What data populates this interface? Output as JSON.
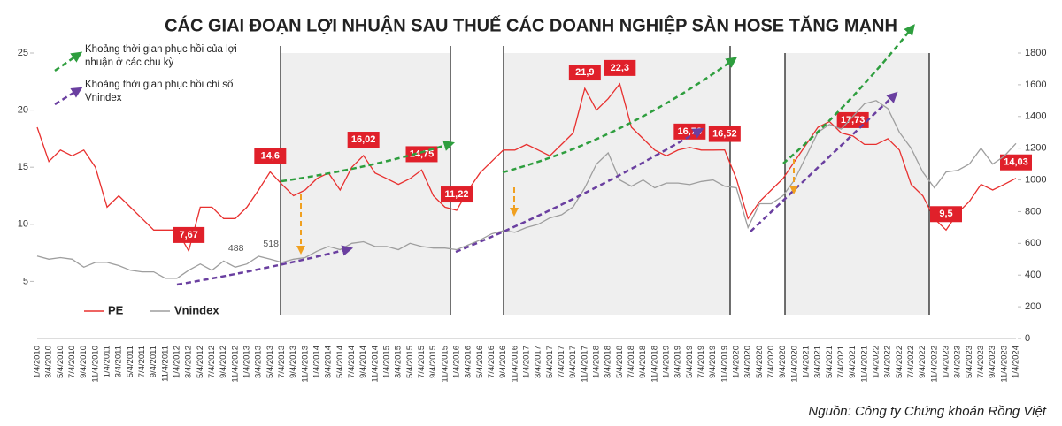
{
  "chart_data": {
    "type": "line",
    "title": "CÁC GIAI ĐOẠN LỢI NHUẬN SAU THUẾ CÁC DOANH NGHIỆP SÀN HOSE TĂNG MẠNH",
    "source": "Nguồn: Công ty Chứng khoán Rồng Việt",
    "annotations": [
      {
        "color": "#2e9e3e",
        "lines": [
          "Khoảng thời gian phục hồi của lợi",
          "nhuận ở các chu kỳ"
        ]
      },
      {
        "color": "#6a3fa0",
        "lines": [
          "Khoảng thời gian phục hồi chỉ số",
          "Vnindex"
        ]
      }
    ],
    "legend": "lower left",
    "categories": [
      "1/4/2010",
      "3/4/2010",
      "5/4/2010",
      "7/4/2010",
      "9/4/2010",
      "11/4/2010",
      "1/4/2011",
      "3/4/2011",
      "5/4/2011",
      "7/4/2011",
      "9/4/2011",
      "11/4/2011",
      "1/4/2012",
      "3/4/2012",
      "5/4/2012",
      "7/4/2012",
      "9/4/2012",
      "11/4/2012",
      "1/4/2013",
      "3/4/2013",
      "5/4/2013",
      "7/4/2013",
      "9/4/2013",
      "11/4/2013",
      "1/4/2014",
      "3/4/2014",
      "5/4/2014",
      "7/4/2014",
      "9/4/2014",
      "11/4/2014",
      "1/4/2015",
      "3/4/2015",
      "5/4/2015",
      "7/4/2015",
      "9/4/2015",
      "11/4/2015",
      "1/4/2016",
      "3/4/2016",
      "5/4/2016",
      "7/4/2016",
      "9/4/2016",
      "11/4/2016",
      "1/4/2017",
      "3/4/2017",
      "5/4/2017",
      "7/4/2017",
      "9/4/2017",
      "11/4/2017",
      "1/4/2018",
      "3/4/2018",
      "5/4/2018",
      "7/4/2018",
      "9/4/2018",
      "11/4/2018",
      "1/4/2019",
      "3/4/2019",
      "5/4/2019",
      "7/4/2019",
      "9/4/2019",
      "11/4/2019",
      "1/4/2020",
      "3/4/2020",
      "5/4/2020",
      "7/4/2020",
      "9/4/2020",
      "11/4/2020",
      "1/4/2021",
      "3/4/2021",
      "5/4/2021",
      "7/4/2021",
      "9/4/2021",
      "11/4/2021",
      "1/4/2022",
      "3/4/2022",
      "5/4/2022",
      "7/4/2022",
      "9/4/2022",
      "11/4/2022",
      "1/4/2023",
      "3/4/2023",
      "5/4/2023",
      "7/4/2023",
      "9/4/2023",
      "11/4/2023",
      "1/4/2024"
    ],
    "series": [
      {
        "name": "PE",
        "color": "#e8302f",
        "label_color": "#e0202a",
        "values": [
          18.5,
          15.5,
          16.5,
          16,
          16.5,
          15,
          11.5,
          12.5,
          11.5,
          10.5,
          9.5,
          9.5,
          9.5,
          7.67,
          11.5,
          11.5,
          10.5,
          10.5,
          11.5,
          13,
          14.6,
          13.5,
          12.5,
          13,
          14,
          14.5,
          13,
          15,
          16.02,
          14.5,
          14,
          13.5,
          14,
          14.75,
          12.5,
          11.5,
          11.22,
          13,
          14.5,
          15.5,
          16.5,
          16.5,
          17,
          16.5,
          16,
          17,
          18,
          21.9,
          20,
          21,
          22.3,
          18.5,
          17.5,
          16.5,
          16,
          16.5,
          16.73,
          16.5,
          16.5,
          16.52,
          14,
          10.5,
          12,
          13,
          14,
          15.5,
          17,
          18.5,
          19,
          18,
          17.73,
          17,
          17,
          17.5,
          16.5,
          13.5,
          12.5,
          10.5,
          9.5,
          11,
          12,
          13.5,
          13,
          13.5,
          14.03
        ],
        "value_labels": [
          null,
          null,
          null,
          null,
          null,
          null,
          null,
          null,
          null,
          null,
          null,
          null,
          null,
          "7,67",
          null,
          null,
          null,
          null,
          null,
          null,
          "14,6",
          null,
          null,
          null,
          null,
          null,
          null,
          null,
          "16,02",
          null,
          null,
          null,
          null,
          "14,75",
          null,
          null,
          "11,22",
          null,
          null,
          null,
          null,
          null,
          null,
          null,
          null,
          null,
          null,
          "21,9",
          null,
          null,
          "22,3",
          null,
          null,
          null,
          null,
          null,
          "16,73",
          null,
          null,
          "16,52",
          null,
          null,
          null,
          null,
          null,
          null,
          null,
          null,
          null,
          null,
          "17,73",
          null,
          null,
          null,
          null,
          null,
          null,
          null,
          "9,5",
          null,
          null,
          null,
          null,
          null,
          "14,03"
        ]
      },
      {
        "name": "Vnindex",
        "color": "#9e9e9e",
        "axis": "y2",
        "values": [
          520,
          500,
          510,
          500,
          450,
          480,
          480,
          460,
          430,
          420,
          420,
          380,
          380,
          430,
          470,
          430,
          488,
          450,
          470,
          518,
          500,
          480,
          500,
          510,
          550,
          580,
          560,
          600,
          610,
          580,
          580,
          560,
          600,
          580,
          570,
          570,
          560,
          590,
          620,
          660,
          680,
          670,
          700,
          720,
          760,
          780,
          830,
          950,
          1100,
          1170,
          1000,
          960,
          1000,
          950,
          980,
          980,
          970,
          990,
          1000,
          960,
          950,
          700,
          850,
          850,
          900,
          1000,
          1150,
          1300,
          1350,
          1320,
          1400,
          1480,
          1500,
          1450,
          1300,
          1200,
          1050,
          950,
          1050,
          1060,
          1100,
          1200,
          1100,
          1150,
          1230
        ],
        "value_labels": [
          null,
          null,
          null,
          null,
          null,
          null,
          null,
          null,
          null,
          null,
          null,
          null,
          null,
          null,
          null,
          null,
          "488",
          null,
          null,
          "518",
          null,
          null,
          null,
          null,
          null,
          null,
          null,
          null,
          null,
          null,
          null,
          null,
          null,
          null,
          null,
          null,
          null,
          null,
          null,
          null,
          null,
          null,
          null,
          null,
          null,
          null,
          null,
          null,
          null,
          null,
          null,
          null,
          null,
          null,
          null,
          null,
          null,
          null,
          null,
          null,
          null,
          null,
          null,
          null,
          null,
          null,
          null,
          null,
          null,
          null,
          null,
          null,
          null,
          null,
          null,
          null,
          null,
          null,
          null,
          null,
          null,
          null,
          null,
          null,
          null
        ]
      }
    ],
    "ylim": [
      0,
      25
    ],
    "yticks": [
      5,
      10,
      15,
      20,
      25
    ],
    "y2lim": [
      0,
      1800
    ],
    "y2ticks": [
      0,
      200,
      400,
      600,
      800,
      1000,
      1200,
      1400,
      1600,
      1800
    ]
  }
}
